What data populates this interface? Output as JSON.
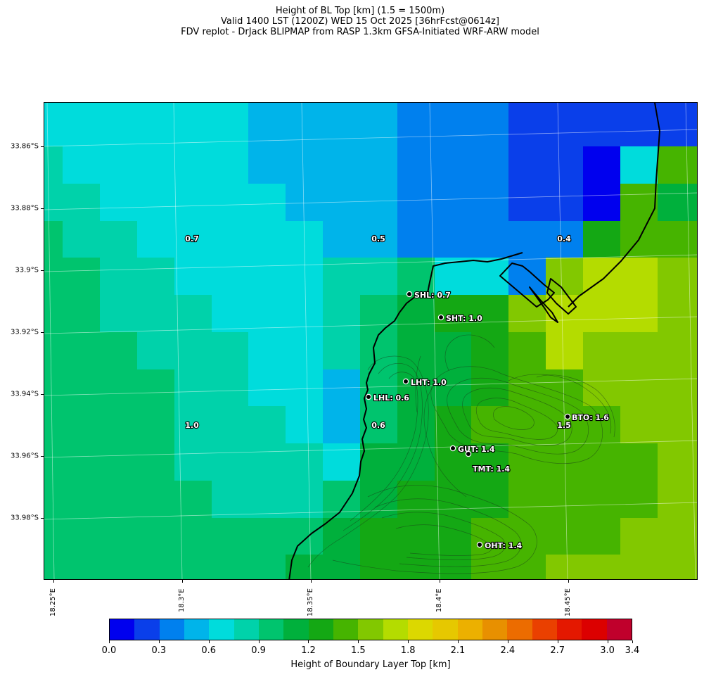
{
  "title": {
    "line1": "Height of BL Top [km] (1.5 = 1500m)",
    "line2": "Valid 1400 LST (1200Z) WED 15 Oct 2025 [36hrFcst@0614z]",
    "line3": "FDV replot - DrJack BLIPMAP from RASP 1.3km GFSA-Initiated WRF-ARW model"
  },
  "axes": {
    "lat_labels": [
      "33.86°S",
      "33.88°S",
      "33.9°S",
      "33.92°S",
      "33.94°S",
      "33.96°S",
      "33.98°S"
    ],
    "lon_labels": [
      "18.25°E",
      "18.3°E",
      "18.35°E",
      "18.4°E",
      "18.45°E"
    ]
  },
  "grid_values": [
    {
      "label": "0.7"
    },
    {
      "label": "0.5"
    },
    {
      "label": "0.4"
    },
    {
      "label": "1.0"
    },
    {
      "label": "0.6"
    },
    {
      "label": "1.5"
    }
  ],
  "stations": [
    {
      "name": "SHL",
      "value": "0.7",
      "text": "SHL: 0.7"
    },
    {
      "name": "SHT",
      "value": "1.0",
      "text": "SHT: 1.0"
    },
    {
      "name": "LHT",
      "value": "1.0",
      "text": "LHT: 1.0"
    },
    {
      "name": "LHL",
      "value": "0.6",
      "text": "LHL: 0.6"
    },
    {
      "name": "BTO",
      "value": "1.6",
      "text": "BTO: 1.6"
    },
    {
      "name": "GUT",
      "value": "1.4",
      "text": "GUT: 1.4"
    },
    {
      "name": "TMT",
      "value": "1.4",
      "text": "TMT: 1.4"
    },
    {
      "name": "OHT",
      "value": "1.4",
      "text": "OHT: 1.4"
    }
  ],
  "colorbar": {
    "label": "Height of Boundary Layer Top [km]",
    "tick_labels": [
      "0.0",
      "0.3",
      "0.6",
      "0.9",
      "1.2",
      "1.5",
      "1.8",
      "2.1",
      "2.4",
      "2.7",
      "3.0",
      "3.4"
    ],
    "colors": [
      "#0000ee",
      "#0a3fea",
      "#0080ee",
      "#00b4ea",
      "#00dcdc",
      "#00d2aa",
      "#00c46e",
      "#00b03c",
      "#14a814",
      "#46b400",
      "#82c800",
      "#b4dc00",
      "#dcd800",
      "#e6c800",
      "#ecb000",
      "#e89000",
      "#ec6c00",
      "#ea4000",
      "#e41800",
      "#dc0000",
      "#c0002c"
    ]
  }
}
